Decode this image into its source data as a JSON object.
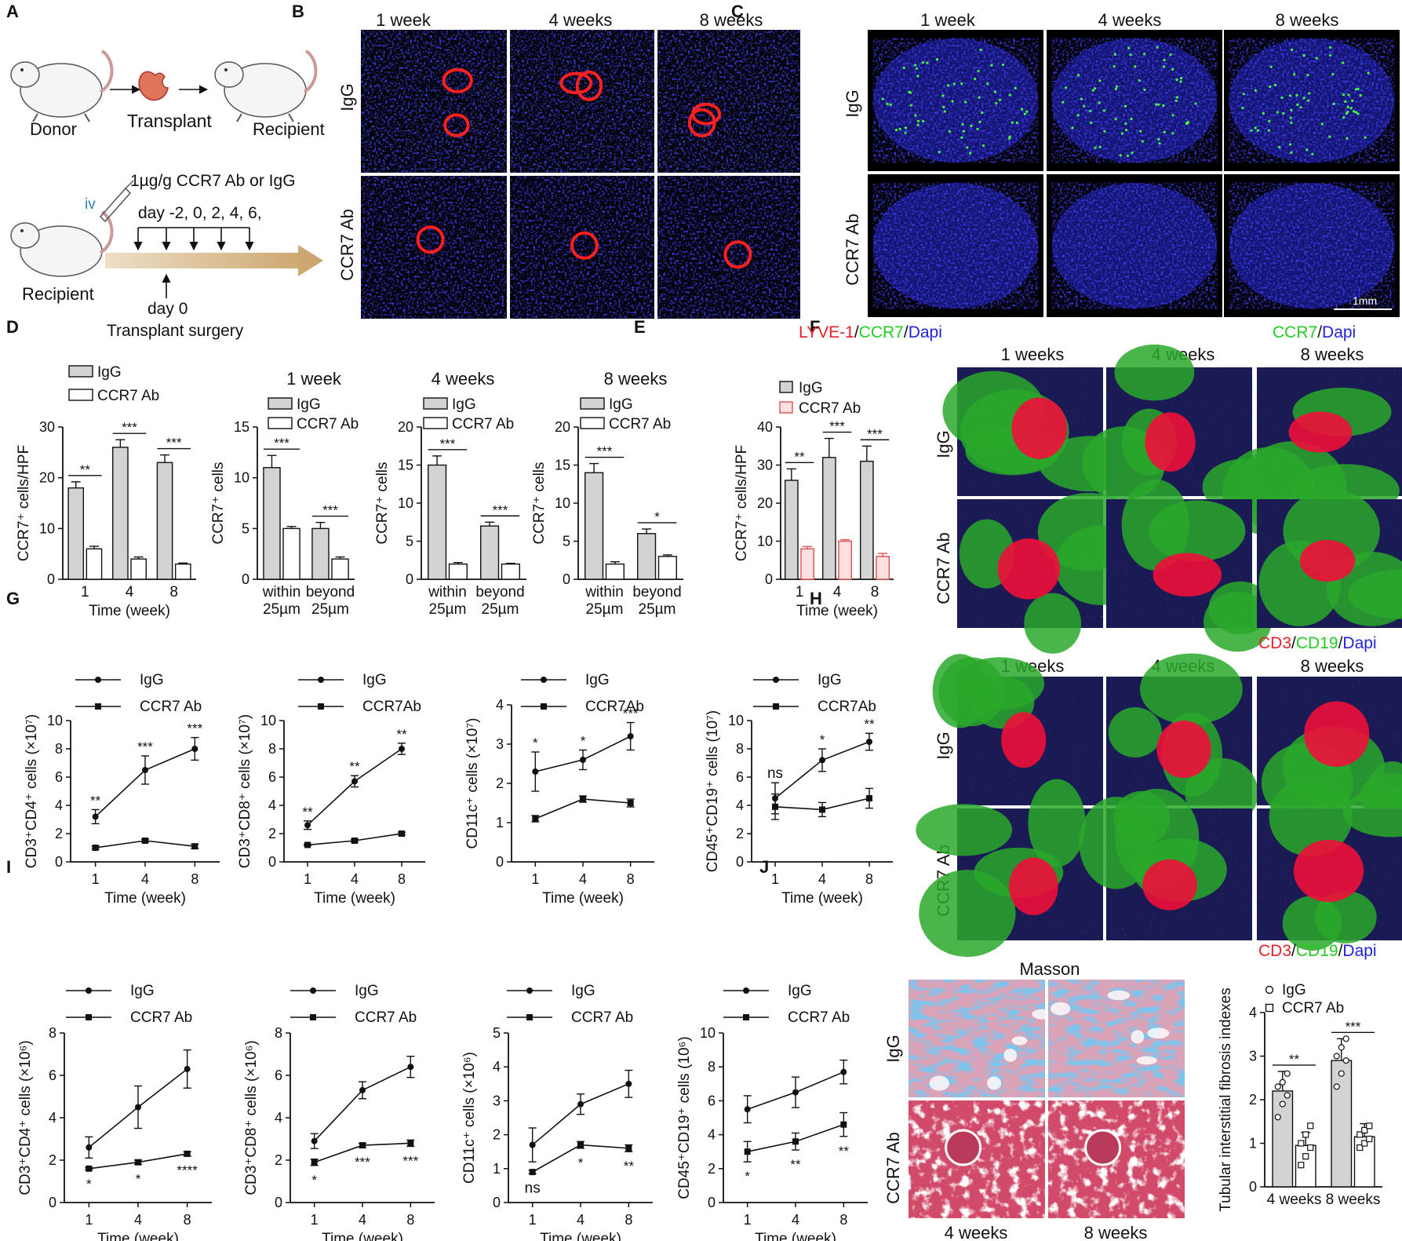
{
  "panel_letters": [
    "A",
    "B",
    "C",
    "D",
    "E",
    "F",
    "G",
    "H",
    "I",
    "J"
  ],
  "panelA": {
    "donor": "Donor",
    "transplant": "Transplant",
    "recipient": "Recipient",
    "iv": "iv",
    "dose": "1µg/g CCR7 Ab or IgG",
    "days": "day -2, 0, 2, 4, 6,",
    "recipient2": "Recipient",
    "day0": "day 0",
    "surgery": "Transplant  surgery"
  },
  "panelB": {
    "cols": [
      "1 week",
      "4 weeks",
      "8 weeks"
    ],
    "rows": [
      "IgG",
      "CCR7 Ab"
    ],
    "stain": [
      "LYVE-1",
      "/",
      "CCR7",
      "/",
      "Dapi"
    ]
  },
  "panelC": {
    "cols": [
      "1 week",
      "4 weeks",
      "8 weeks"
    ],
    "rows": [
      "IgG",
      "CCR7 Ab"
    ],
    "scale": "1mm",
    "stain": [
      "CCR7",
      "/",
      "Dapi"
    ]
  },
  "panelF": {
    "cols": [
      "1 weeks",
      "4 weeks",
      "8 weeks"
    ],
    "rows": [
      "IgG",
      "CCR7 Ab"
    ],
    "stain": [
      "CD3",
      "/",
      "CD19",
      "/",
      "Dapi"
    ]
  },
  "panelH": {
    "cols": [
      "1 weeks",
      "4 weeks",
      "8 weeks"
    ],
    "rows": [
      "IgG",
      "CCR7 Ab"
    ],
    "stain": [
      "CD3",
      "/",
      "CD19",
      "/",
      "Dapi"
    ]
  },
  "panelJ": {
    "title": "Masson",
    "rows": [
      "IgG",
      "CCR7 Ab"
    ],
    "cols": [
      "4 weeks",
      "8 weeks"
    ]
  },
  "colors": {
    "red": "#e8202a",
    "green": "#22cc22",
    "blue": "#2222dd",
    "bar_grey": "#d3d3d3",
    "bar_pink": "#fde0e0",
    "pink_edge": "#e05050"
  },
  "chart_data": [
    {
      "id": "D1",
      "type": "bar",
      "ylabel": "CCR7⁺ cells/HPF",
      "xlabel": "Time (week)",
      "categories": [
        "1",
        "4",
        "8"
      ],
      "ylim": [
        0,
        30
      ],
      "yticks": [
        0,
        10,
        20,
        30
      ],
      "series": [
        {
          "name": "IgG",
          "values": [
            18,
            26,
            23
          ],
          "err": [
            1.2,
            1.5,
            1.5
          ]
        },
        {
          "name": "CCR7 Ab",
          "values": [
            6,
            4,
            3
          ],
          "err": [
            0.5,
            0.4,
            0.2
          ]
        }
      ],
      "sig": [
        "**",
        "***",
        "***"
      ]
    },
    {
      "id": "D2",
      "type": "bar",
      "title": "1 week",
      "ylabel": "CCR7⁺ cells",
      "categories": [
        "within\n25µm",
        "beyond\n25µm"
      ],
      "ylim": [
        0,
        15
      ],
      "yticks": [
        0,
        5,
        10,
        15
      ],
      "series": [
        {
          "name": "IgG",
          "values": [
            11,
            5
          ],
          "err": [
            1.2,
            0.6
          ]
        },
        {
          "name": "CCR7 Ab",
          "values": [
            5,
            2
          ],
          "err": [
            0.2,
            0.2
          ]
        }
      ],
      "sig": [
        "***",
        "***"
      ]
    },
    {
      "id": "D3",
      "type": "bar",
      "title": "4 weeks",
      "ylabel": "CCR7⁺ cells",
      "categories": [
        "within\n25µm",
        "beyond\n25µm"
      ],
      "ylim": [
        0,
        20
      ],
      "yticks": [
        0,
        5,
        10,
        15,
        20
      ],
      "series": [
        {
          "name": "IgG",
          "values": [
            15,
            7
          ],
          "err": [
            1.2,
            0.5
          ]
        },
        {
          "name": "CCR7 Ab",
          "values": [
            2,
            2
          ],
          "err": [
            0.2,
            0.1
          ]
        }
      ],
      "sig": [
        "***",
        "***"
      ]
    },
    {
      "id": "D4",
      "type": "bar",
      "title": "8 weeks",
      "ylabel": "CCR7⁺ cells",
      "categories": [
        "within\n25µm",
        "beyond\n25µm"
      ],
      "ylim": [
        0,
        20
      ],
      "yticks": [
        0,
        5,
        10,
        15,
        20
      ],
      "series": [
        {
          "name": "IgG",
          "values": [
            14,
            6
          ],
          "err": [
            1.2,
            0.6
          ]
        },
        {
          "name": "CCR7 Ab",
          "values": [
            2,
            3
          ],
          "err": [
            0.3,
            0.2
          ]
        }
      ],
      "sig": [
        "***",
        "*"
      ]
    },
    {
      "id": "E",
      "type": "bar",
      "ylabel": "CCR7⁺ cells/HPF",
      "xlabel": "Time (week)",
      "categories": [
        "1",
        "4",
        "8"
      ],
      "ylim": [
        0,
        40
      ],
      "yticks": [
        0,
        10,
        20,
        30,
        40
      ],
      "series": [
        {
          "name": "IgG",
          "values": [
            26,
            32,
            31
          ],
          "err": [
            3,
            5,
            4
          ]
        },
        {
          "name": "CCR7 Ab",
          "values": [
            8,
            10,
            6
          ],
          "err": [
            0.6,
            0.4,
            0.8
          ]
        }
      ],
      "sig": [
        "**",
        "***",
        "***"
      ]
    },
    {
      "id": "G1",
      "type": "line",
      "ylabel": "CD3⁺CD4⁺ cells (×10⁷)",
      "xlabel": "Time (week)",
      "x": [
        "1",
        "4",
        "8"
      ],
      "ylim": [
        0,
        10
      ],
      "yticks": [
        0,
        2,
        4,
        6,
        8,
        10
      ],
      "series": [
        {
          "name": "IgG",
          "values": [
            3.2,
            6.5,
            8
          ],
          "err": [
            0.5,
            1,
            0.8
          ]
        },
        {
          "name": "CCR7 Ab",
          "values": [
            1,
            1.5,
            1.1
          ],
          "err": [
            0.1,
            0.1,
            0.15
          ]
        }
      ],
      "sig": [
        "**",
        "***",
        "***"
      ]
    },
    {
      "id": "G2",
      "type": "line",
      "ylabel": "CD3⁺CD8⁺ cells (×10⁷)",
      "xlabel": "Time (week)",
      "x": [
        "1",
        "4",
        "8"
      ],
      "ylim": [
        0,
        10
      ],
      "yticks": [
        0,
        2,
        4,
        6,
        8,
        10
      ],
      "series": [
        {
          "name": "IgG",
          "values": [
            2.6,
            5.7,
            8
          ],
          "err": [
            0.3,
            0.4,
            0.4
          ]
        },
        {
          "name": "CCR7Ab",
          "values": [
            1.2,
            1.5,
            2
          ],
          "err": [
            0.05,
            0.1,
            0.1
          ]
        }
      ],
      "sig": [
        "**",
        "**",
        "**"
      ]
    },
    {
      "id": "G3",
      "type": "line",
      "ylabel": "CD11c⁺ cells (×10⁷)",
      "xlabel": "Time (week)",
      "x": [
        "1",
        "4",
        "8"
      ],
      "ylim": [
        0,
        4
      ],
      "yticks": [
        0,
        1,
        2,
        3,
        4
      ],
      "series": [
        {
          "name": "IgG",
          "values": [
            2.3,
            2.6,
            3.2
          ],
          "err": [
            0.5,
            0.25,
            0.35
          ]
        },
        {
          "name": "CCR7Ab",
          "values": [
            1.1,
            1.6,
            1.5
          ],
          "err": [
            0.08,
            0.08,
            0.1
          ]
        }
      ],
      "sig": [
        "*",
        "*",
        "***"
      ]
    },
    {
      "id": "G4",
      "type": "line",
      "ylabel": "CD45⁺CD19⁺ cells (10⁷)",
      "xlabel": "Time (week)",
      "x": [
        "1",
        "4",
        "8"
      ],
      "ylim": [
        0,
        10
      ],
      "yticks": [
        0,
        2,
        4,
        6,
        8,
        10
      ],
      "series": [
        {
          "name": "IgG",
          "values": [
            4.5,
            7.2,
            8.5
          ],
          "err": [
            1.1,
            0.8,
            0.6
          ]
        },
        {
          "name": "CCR7Ab",
          "values": [
            3.9,
            3.7,
            4.5
          ],
          "err": [
            0.9,
            0.5,
            0.7
          ]
        }
      ],
      "sig": [
        "ns",
        "*",
        "**"
      ]
    },
    {
      "id": "I1",
      "type": "line",
      "ylabel": "CD3⁺CD4⁺ cells (×10⁶)",
      "xlabel": "Time (week)",
      "x": [
        "1",
        "4",
        "8"
      ],
      "ylim": [
        0,
        8
      ],
      "yticks": [
        0,
        2,
        4,
        6,
        8
      ],
      "series": [
        {
          "name": "IgG",
          "values": [
            2.6,
            4.5,
            6.3
          ],
          "err": [
            0.5,
            1,
            0.9
          ]
        },
        {
          "name": "CCR7 Ab",
          "values": [
            1.6,
            1.9,
            2.3
          ],
          "err": [
            0.05,
            0.1,
            0.1
          ]
        }
      ],
      "sig": [
        "*",
        "*",
        "****"
      ]
    },
    {
      "id": "I2",
      "type": "line",
      "ylabel": "CD3⁺CD8⁺ cells (×10⁶)",
      "xlabel": "Time (week)",
      "x": [
        "1",
        "4",
        "8"
      ],
      "ylim": [
        0,
        8
      ],
      "yticks": [
        0,
        2,
        4,
        6,
        8
      ],
      "series": [
        {
          "name": "IgG",
          "values": [
            2.9,
            5.3,
            6.4
          ],
          "err": [
            0.35,
            0.4,
            0.5
          ]
        },
        {
          "name": "CCR7 Ab",
          "values": [
            1.9,
            2.7,
            2.8
          ],
          "err": [
            0.15,
            0.1,
            0.15
          ]
        }
      ],
      "sig": [
        "*",
        "***",
        "***"
      ]
    },
    {
      "id": "I3",
      "type": "line",
      "ylabel": "CD11c⁺ cells (×10⁶)",
      "xlabel": "Time (week)",
      "x": [
        "1",
        "4",
        "8"
      ],
      "ylim": [
        0,
        5
      ],
      "yticks": [
        0,
        1,
        2,
        3,
        4,
        5
      ],
      "series": [
        {
          "name": "IgG",
          "values": [
            1.7,
            2.9,
            3.5
          ],
          "err": [
            0.5,
            0.3,
            0.4
          ]
        },
        {
          "name": "CCR7 Ab",
          "values": [
            0.9,
            1.7,
            1.6
          ],
          "err": [
            0.05,
            0.1,
            0.1
          ]
        }
      ],
      "sig": [
        "ns",
        "*",
        "**"
      ]
    },
    {
      "id": "I4",
      "type": "line",
      "ylabel": "CD45⁺CD19⁺ cells (10⁶)",
      "xlabel": "Time (week)",
      "x": [
        "1",
        "4",
        "8"
      ],
      "ylim": [
        0,
        10
      ],
      "yticks": [
        0,
        2,
        4,
        6,
        8,
        10
      ],
      "series": [
        {
          "name": "IgG",
          "values": [
            5.5,
            6.5,
            7.7
          ],
          "err": [
            0.8,
            0.9,
            0.7
          ]
        },
        {
          "name": "CCR7 Ab",
          "values": [
            3,
            3.6,
            4.6
          ],
          "err": [
            0.6,
            0.5,
            0.7
          ]
        }
      ],
      "sig": [
        "*",
        "**",
        "**"
      ]
    },
    {
      "id": "J",
      "type": "bar",
      "ylabel": "Tubular interstitial fibrosis indexes",
      "categories": [
        "4 weeks",
        "8 weeks"
      ],
      "ylim": [
        0,
        4
      ],
      "yticks": [
        0,
        1,
        2,
        3,
        4
      ],
      "series": [
        {
          "name": "IgG",
          "values": [
            2.2,
            2.9
          ],
          "err": [
            0.45,
            0.5
          ],
          "points": [
            [
              1.6,
              1.9,
              2.1,
              2.3,
              2.4,
              2.6
            ],
            [
              2.3,
              2.6,
              2.9,
              3.0,
              3.2,
              3.4
            ]
          ]
        },
        {
          "name": "CCR7 Ab",
          "values": [
            0.95,
            1.15
          ],
          "err": [
            0.3,
            0.3
          ],
          "points": [
            [
              0.5,
              0.7,
              0.9,
              1.0,
              1.2,
              1.4
            ],
            [
              0.9,
              1.0,
              1.1,
              1.2,
              1.3,
              1.4
            ]
          ]
        }
      ],
      "sig": [
        "**",
        "***"
      ]
    }
  ]
}
